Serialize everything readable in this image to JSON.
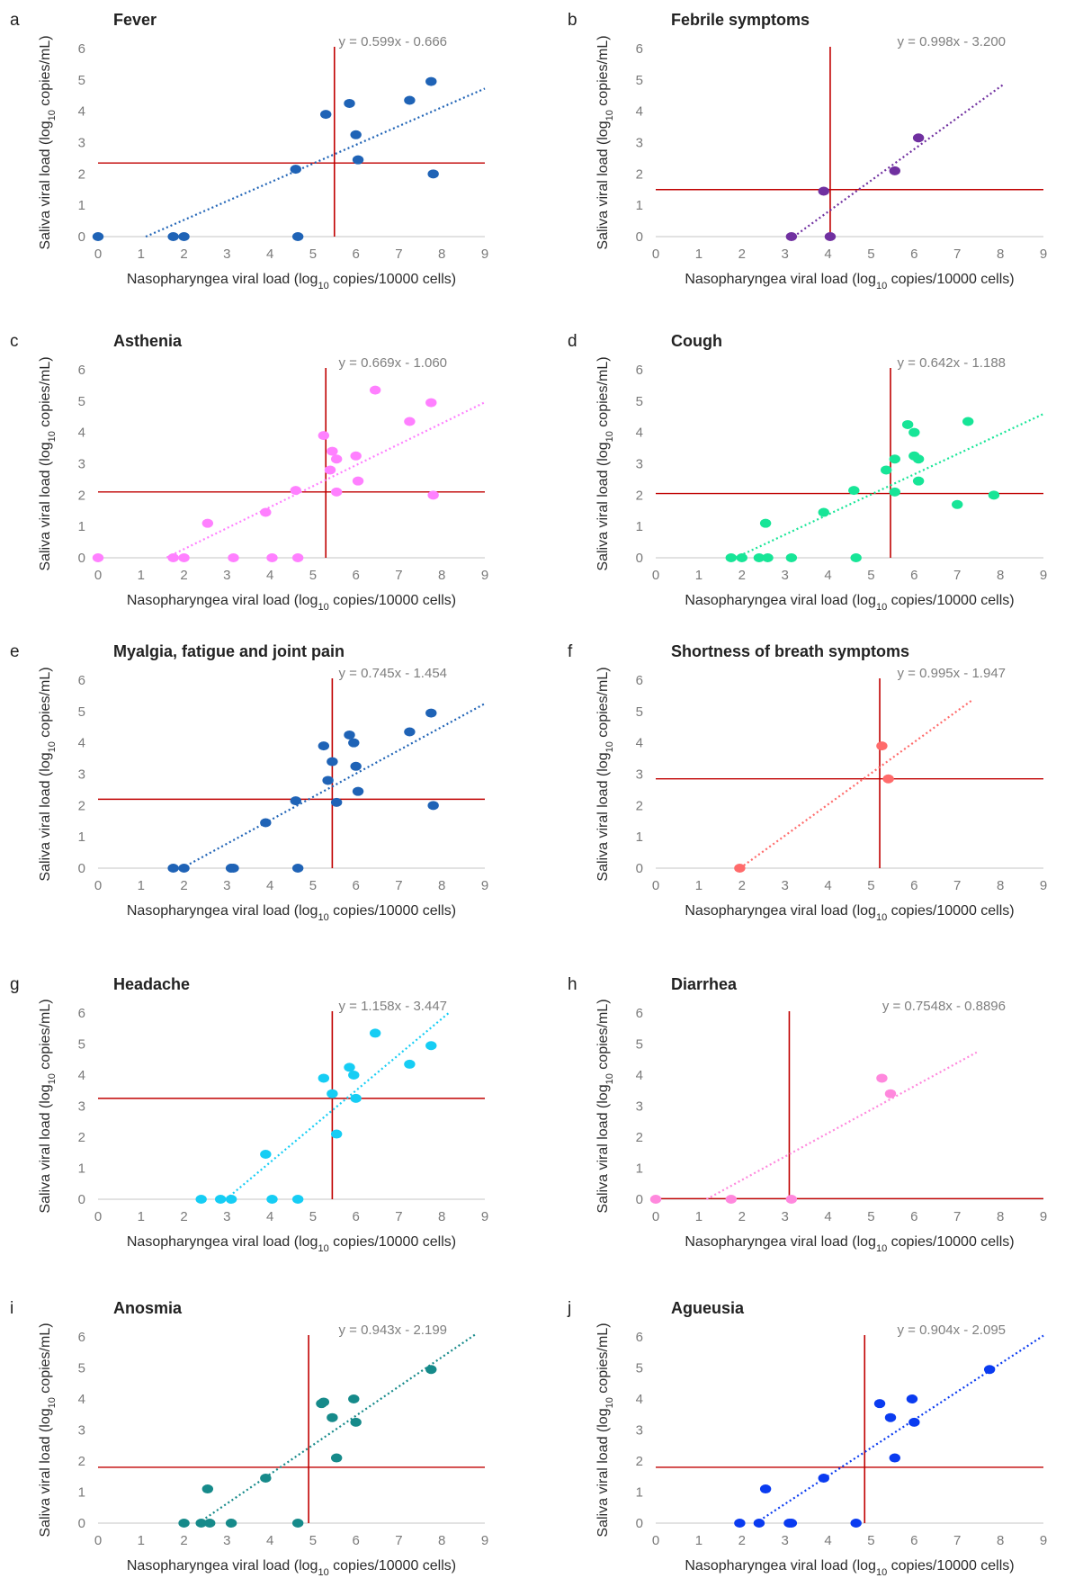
{
  "figure": {
    "x_axis_label": {
      "prefix": "Nasopharyngea viral load (log",
      "sub": "10",
      "suffix": " copies/10000 cells)"
    },
    "y_axis_label": {
      "prefix": "Saliva viral load (log",
      "sub": "10",
      "suffix": " copies/mL)"
    },
    "threshold_color": "#c00000"
  },
  "chart_data": [
    {
      "type": "scatter",
      "letter": "a",
      "title": "Fever",
      "color": "#1f63b6",
      "equation": "y = 0.599x - 0.666",
      "slope": 0.599,
      "intercept": -0.666,
      "fit_x": [
        1.11,
        9.0
      ],
      "xlim": [
        0,
        9
      ],
      "ylim": [
        0,
        6
      ],
      "xticks": [
        0,
        1,
        2,
        3,
        4,
        5,
        6,
        7,
        8,
        9
      ],
      "yticks": [
        0,
        1,
        2,
        3,
        4,
        5,
        6
      ],
      "vline_x": 5.5,
      "hline_y": 2.35,
      "points": [
        [
          0,
          0
        ],
        [
          1.75,
          0
        ],
        [
          2.0,
          0
        ],
        [
          4.65,
          0
        ],
        [
          4.6,
          2.15
        ],
        [
          5.3,
          3.9
        ],
        [
          5.85,
          4.25
        ],
        [
          6.0,
          3.25
        ],
        [
          6.05,
          2.45
        ],
        [
          7.25,
          4.35
        ],
        [
          7.75,
          4.95
        ],
        [
          7.8,
          2.0
        ]
      ]
    },
    {
      "type": "scatter",
      "letter": "b",
      "title": "Febrile symptoms",
      "color": "#7030a0",
      "equation": "y = 0.998x - 3.200",
      "slope": 0.998,
      "intercept": -3.2,
      "fit_x": [
        3.2,
        8.1
      ],
      "xlim": [
        0,
        9
      ],
      "ylim": [
        0,
        6
      ],
      "xticks": [
        0,
        1,
        2,
        3,
        4,
        5,
        6,
        7,
        8,
        9
      ],
      "yticks": [
        0,
        1,
        2,
        3,
        4,
        5,
        6
      ],
      "vline_x": 4.05,
      "hline_y": 1.5,
      "points": [
        [
          3.15,
          0
        ],
        [
          4.05,
          0
        ],
        [
          3.9,
          1.45
        ],
        [
          5.55,
          2.1
        ],
        [
          6.1,
          3.15
        ]
      ]
    },
    {
      "type": "scatter",
      "letter": "c",
      "title": "Asthenia",
      "color": "#ff80ff",
      "equation": "y = 0.669x - 1.060",
      "slope": 0.669,
      "intercept": -1.06,
      "fit_x": [
        1.6,
        9.0
      ],
      "xlim": [
        0,
        9
      ],
      "ylim": [
        0,
        6
      ],
      "xticks": [
        0,
        1,
        2,
        3,
        4,
        5,
        6,
        7,
        8,
        9
      ],
      "yticks": [
        0,
        1,
        2,
        3,
        4,
        5,
        6
      ],
      "vline_x": 5.3,
      "hline_y": 2.1,
      "points": [
        [
          0,
          0
        ],
        [
          1.75,
          0
        ],
        [
          2.0,
          0
        ],
        [
          3.15,
          0
        ],
        [
          4.05,
          0
        ],
        [
          4.65,
          0
        ],
        [
          2.55,
          1.1
        ],
        [
          3.9,
          1.45
        ],
        [
          4.6,
          2.15
        ],
        [
          5.25,
          3.9
        ],
        [
          5.4,
          2.8
        ],
        [
          5.45,
          3.4
        ],
        [
          5.55,
          3.15
        ],
        [
          5.55,
          2.1
        ],
        [
          6.0,
          3.25
        ],
        [
          6.05,
          2.45
        ],
        [
          6.45,
          5.35
        ],
        [
          7.25,
          4.35
        ],
        [
          7.75,
          4.95
        ],
        [
          7.8,
          2.0
        ]
      ]
    },
    {
      "type": "scatter",
      "letter": "d",
      "title": "Cough",
      "color": "#17e597",
      "equation": "y = 0.642x - 1.188",
      "slope": 0.642,
      "intercept": -1.188,
      "fit_x": [
        1.85,
        9.0
      ],
      "xlim": [
        0,
        9
      ],
      "ylim": [
        0,
        6
      ],
      "xticks": [
        0,
        1,
        2,
        3,
        4,
        5,
        6,
        7,
        8,
        9
      ],
      "yticks": [
        0,
        1,
        2,
        3,
        4,
        5,
        6
      ],
      "vline_x": 5.45,
      "hline_y": 2.05,
      "points": [
        [
          1.75,
          0
        ],
        [
          2.0,
          0
        ],
        [
          2.4,
          0
        ],
        [
          2.6,
          0
        ],
        [
          3.15,
          0
        ],
        [
          4.65,
          0
        ],
        [
          2.55,
          1.1
        ],
        [
          3.9,
          1.45
        ],
        [
          4.6,
          2.15
        ],
        [
          5.35,
          2.8
        ],
        [
          5.55,
          3.15
        ],
        [
          5.55,
          2.1
        ],
        [
          5.85,
          4.25
        ],
        [
          6.0,
          4.0
        ],
        [
          6.0,
          3.25
        ],
        [
          6.1,
          3.15
        ],
        [
          6.1,
          2.45
        ],
        [
          7.0,
          1.7
        ],
        [
          7.25,
          4.35
        ],
        [
          7.85,
          2.0
        ]
      ]
    },
    {
      "type": "scatter",
      "letter": "e",
      "title": "Myalgia, fatigue and joint pain",
      "color": "#1f63b6",
      "equation": "y = 0.745x - 1.454",
      "slope": 0.745,
      "intercept": -1.454,
      "fit_x": [
        1.95,
        9.0
      ],
      "xlim": [
        0,
        9
      ],
      "ylim": [
        0,
        6
      ],
      "xticks": [
        0,
        1,
        2,
        3,
        4,
        5,
        6,
        7,
        8,
        9
      ],
      "yticks": [
        0,
        1,
        2,
        3,
        4,
        5,
        6
      ],
      "vline_x": 5.45,
      "hline_y": 2.2,
      "points": [
        [
          1.75,
          0
        ],
        [
          2.0,
          0
        ],
        [
          3.1,
          0
        ],
        [
          3.15,
          0
        ],
        [
          4.65,
          0
        ],
        [
          3.9,
          1.45
        ],
        [
          4.6,
          2.15
        ],
        [
          5.25,
          3.9
        ],
        [
          5.35,
          2.8
        ],
        [
          5.45,
          3.4
        ],
        [
          5.55,
          2.1
        ],
        [
          5.85,
          4.25
        ],
        [
          5.95,
          4.0
        ],
        [
          6.0,
          3.25
        ],
        [
          6.05,
          2.45
        ],
        [
          7.25,
          4.35
        ],
        [
          7.75,
          4.95
        ],
        [
          7.8,
          2.0
        ]
      ]
    },
    {
      "type": "scatter",
      "letter": "f",
      "title": "Shortness of breath symptoms",
      "color": "#ff6b6b",
      "equation": "y = 0.995x - 1.947",
      "slope": 0.995,
      "intercept": -1.947,
      "fit_x": [
        1.96,
        7.35
      ],
      "xlim": [
        0,
        9
      ],
      "ylim": [
        0,
        6
      ],
      "xticks": [
        0,
        1,
        2,
        3,
        4,
        5,
        6,
        7,
        8,
        9
      ],
      "yticks": [
        0,
        1,
        2,
        3,
        4,
        5,
        6
      ],
      "vline_x": 5.2,
      "hline_y": 2.85,
      "points": [
        [
          1.95,
          0
        ],
        [
          5.25,
          3.9
        ],
        [
          5.4,
          2.85
        ]
      ]
    },
    {
      "type": "scatter",
      "letter": "g",
      "title": "Headache",
      "color": "#16cdf4",
      "equation": "y = 1.158x - 3.447",
      "slope": 1.158,
      "intercept": -3.447,
      "fit_x": [
        2.98,
        8.15
      ],
      "xlim": [
        0,
        9
      ],
      "ylim": [
        0,
        6
      ],
      "xticks": [
        0,
        1,
        2,
        3,
        4,
        5,
        6,
        7,
        8,
        9
      ],
      "yticks": [
        0,
        1,
        2,
        3,
        4,
        5,
        6
      ],
      "vline_x": 5.45,
      "hline_y": 3.25,
      "points": [
        [
          2.4,
          0
        ],
        [
          2.85,
          0
        ],
        [
          3.1,
          0
        ],
        [
          4.05,
          0
        ],
        [
          4.65,
          0
        ],
        [
          3.9,
          1.45
        ],
        [
          5.25,
          3.9
        ],
        [
          5.45,
          3.4
        ],
        [
          5.55,
          2.1
        ],
        [
          5.85,
          4.25
        ],
        [
          5.95,
          4.0
        ],
        [
          6.0,
          3.25
        ],
        [
          6.45,
          5.35
        ],
        [
          7.25,
          4.35
        ],
        [
          7.75,
          4.95
        ]
      ]
    },
    {
      "type": "scatter",
      "letter": "h",
      "title": "Diarrhea",
      "color": "#ff88dd",
      "equation": "y = 0.7548x - 0.8896",
      "slope": 0.7548,
      "intercept": -0.8896,
      "fit_x": [
        1.18,
        7.45
      ],
      "xlim": [
        0,
        9
      ],
      "ylim": [
        0,
        6
      ],
      "xticks": [
        0,
        1,
        2,
        3,
        4,
        5,
        6,
        7,
        8,
        9
      ],
      "yticks": [
        0,
        1,
        2,
        3,
        4,
        5,
        6
      ],
      "vline_x": 3.1,
      "hline_y": 0.02,
      "points": [
        [
          0,
          0
        ],
        [
          1.75,
          0
        ],
        [
          3.15,
          0
        ],
        [
          5.25,
          3.9
        ],
        [
          5.45,
          3.4
        ]
      ]
    },
    {
      "type": "scatter",
      "letter": "i",
      "title": "Anosmia",
      "color": "#168a8a",
      "equation": "y = 0.943x - 2.199",
      "slope": 0.943,
      "intercept": -2.199,
      "fit_x": [
        2.33,
        8.8
      ],
      "xlim": [
        0,
        9
      ],
      "ylim": [
        0,
        6
      ],
      "xticks": [
        0,
        1,
        2,
        3,
        4,
        5,
        6,
        7,
        8,
        9
      ],
      "yticks": [
        0,
        1,
        2,
        3,
        4,
        5,
        6
      ],
      "vline_x": 4.9,
      "hline_y": 1.8,
      "points": [
        [
          2.0,
          0
        ],
        [
          2.4,
          0
        ],
        [
          2.6,
          0
        ],
        [
          3.1,
          0
        ],
        [
          4.65,
          0
        ],
        [
          2.55,
          1.1
        ],
        [
          3.9,
          1.45
        ],
        [
          5.2,
          3.85
        ],
        [
          5.25,
          3.9
        ],
        [
          5.45,
          3.4
        ],
        [
          5.55,
          2.1
        ],
        [
          5.95,
          4.0
        ],
        [
          6.0,
          3.25
        ],
        [
          7.75,
          4.95
        ]
      ]
    },
    {
      "type": "scatter",
      "letter": "j",
      "title": "Agueusia",
      "color": "#0a3bf0",
      "equation": "y = 0.904x - 2.095",
      "slope": 0.904,
      "intercept": -2.095,
      "fit_x": [
        2.32,
        9.0
      ],
      "xlim": [
        0,
        9
      ],
      "ylim": [
        0,
        6
      ],
      "xticks": [
        0,
        1,
        2,
        3,
        4,
        5,
        6,
        7,
        8,
        9
      ],
      "yticks": [
        0,
        1,
        2,
        3,
        4,
        5,
        6
      ],
      "vline_x": 4.85,
      "hline_y": 1.8,
      "points": [
        [
          1.95,
          0
        ],
        [
          2.4,
          0
        ],
        [
          3.1,
          0
        ],
        [
          3.15,
          0
        ],
        [
          4.65,
          0
        ],
        [
          2.55,
          1.1
        ],
        [
          3.9,
          1.45
        ],
        [
          5.2,
          3.85
        ],
        [
          5.45,
          3.4
        ],
        [
          5.55,
          2.1
        ],
        [
          5.95,
          4.0
        ],
        [
          6.0,
          3.25
        ],
        [
          7.75,
          4.95
        ]
      ]
    }
  ]
}
